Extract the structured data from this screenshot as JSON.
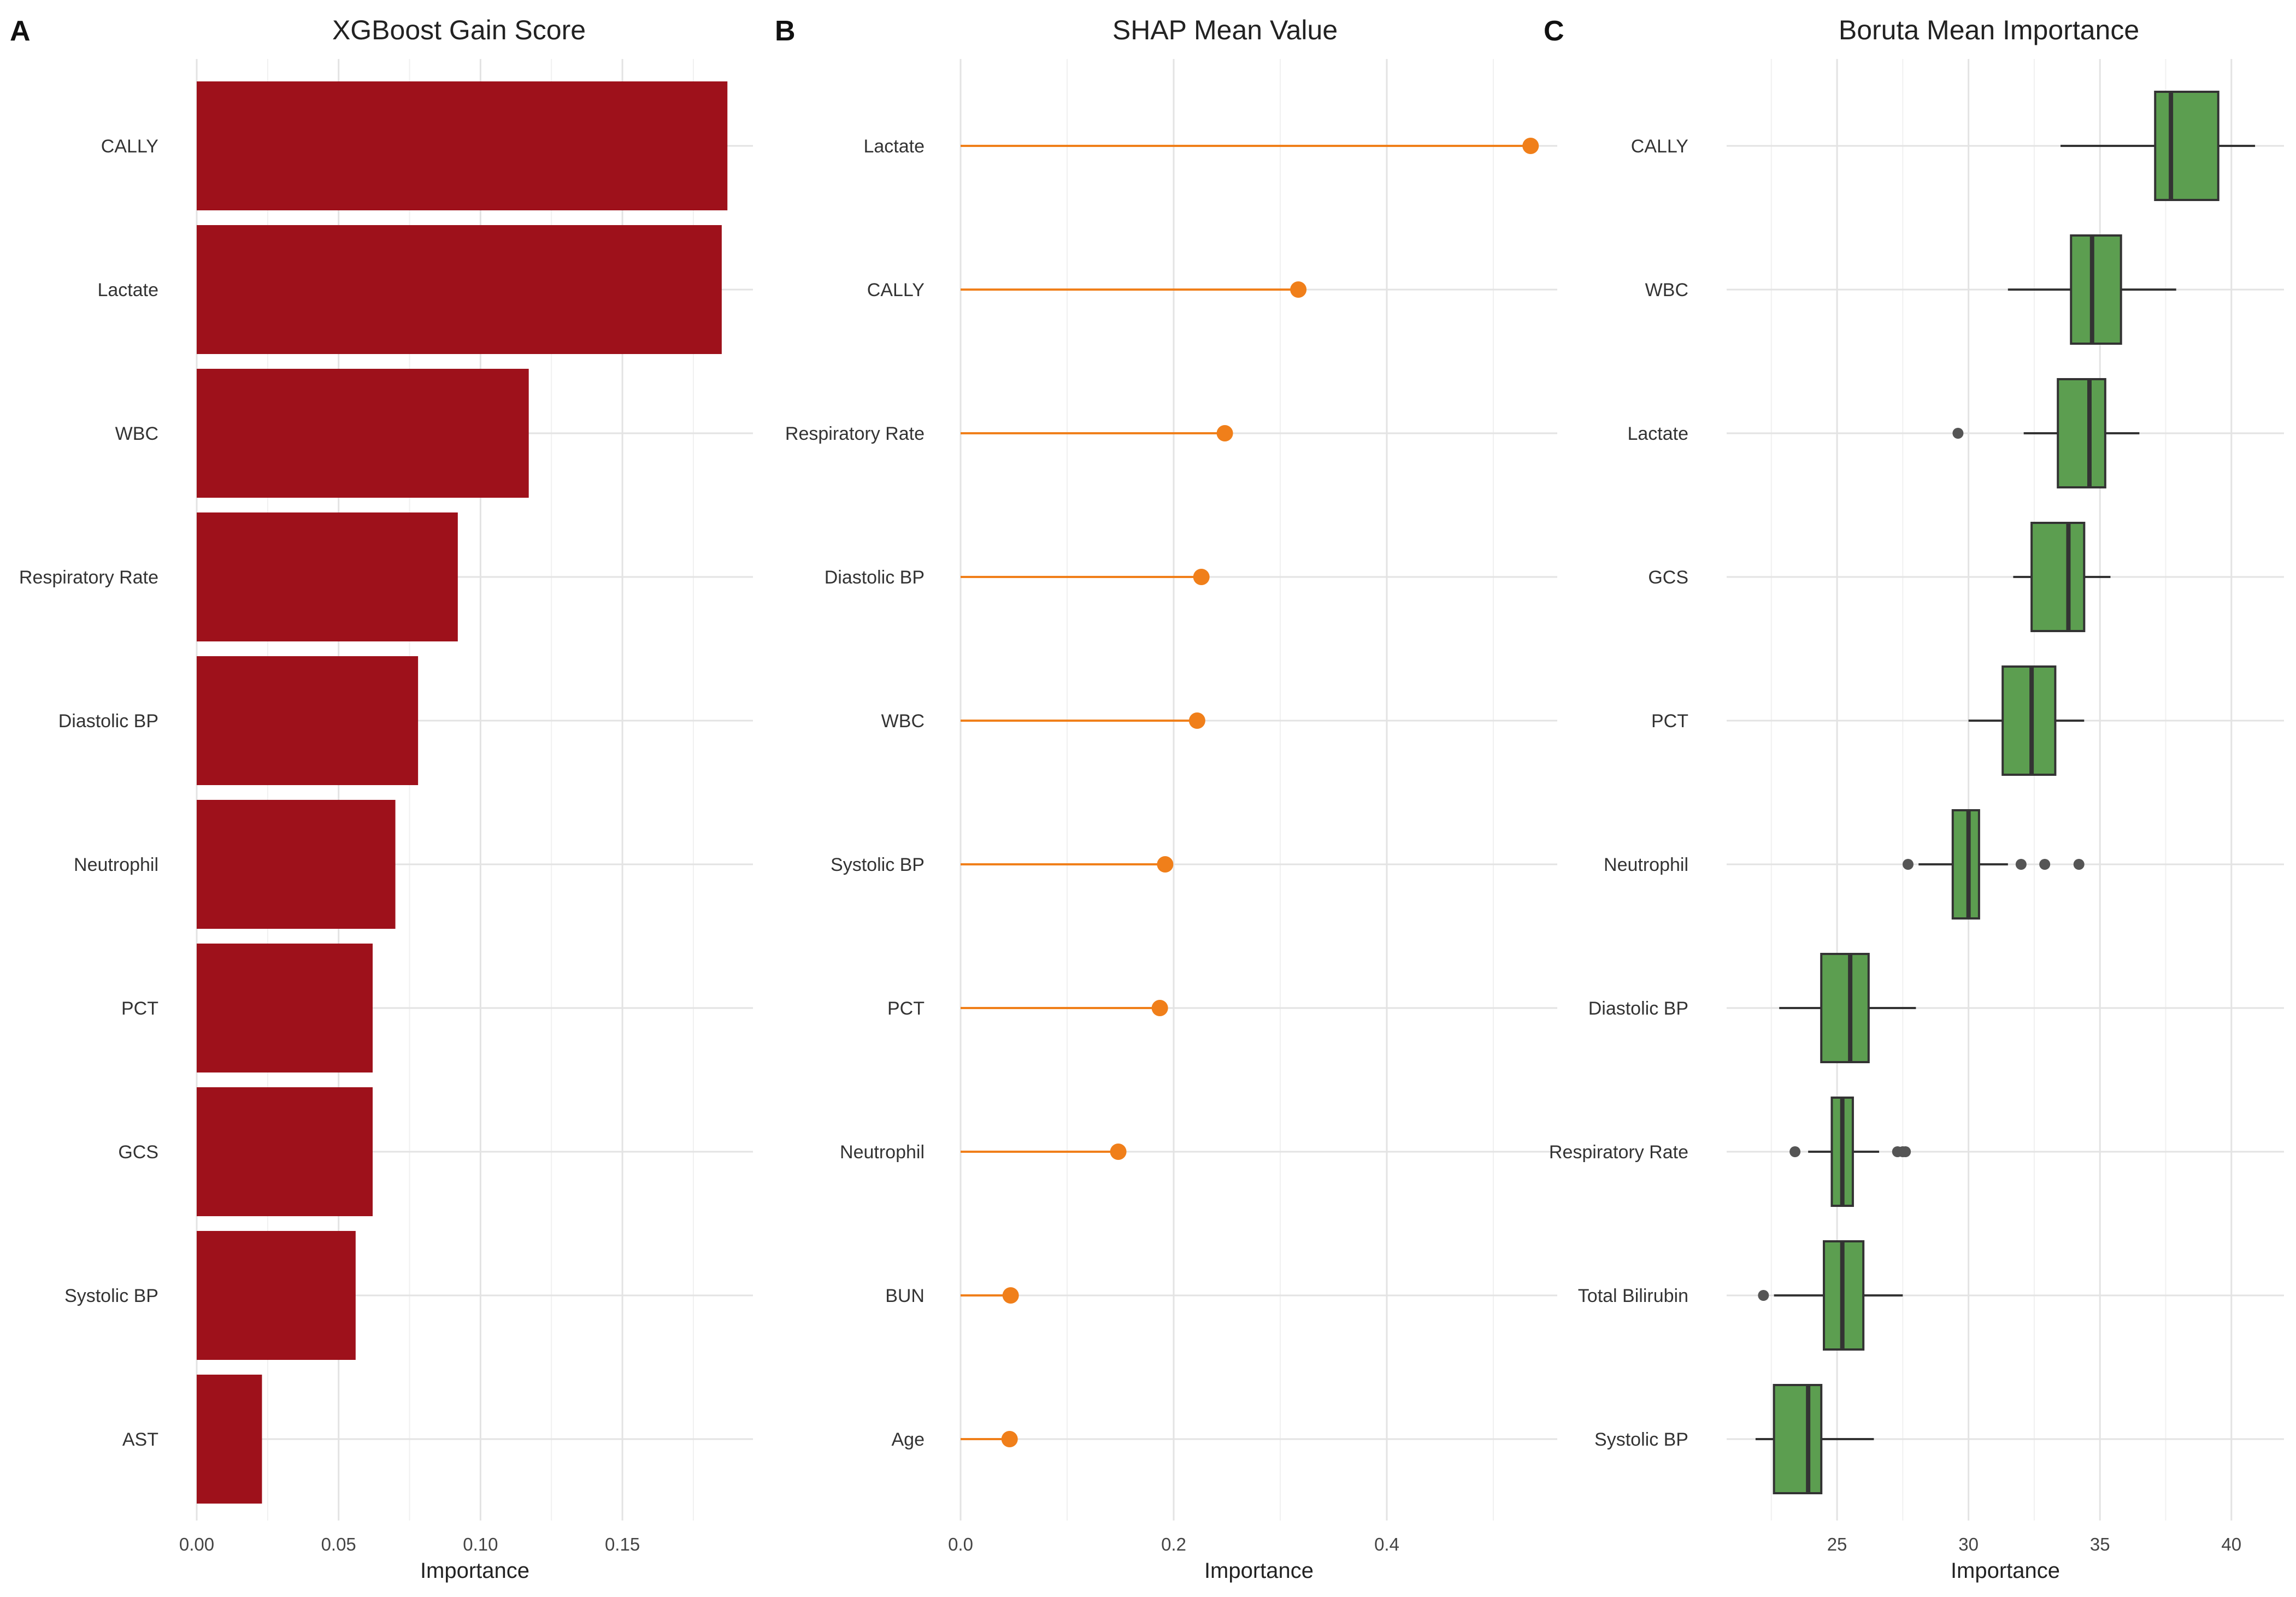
{
  "chart_data": [
    {
      "panel": "A",
      "type": "bar",
      "orientation": "horizontal",
      "title": "XGBoost Gain Score",
      "xlabel": "Importance",
      "ylabel": "",
      "xlim": [
        0,
        0.196
      ],
      "xticks": [
        0.0,
        0.05,
        0.1,
        0.15
      ],
      "xtick_labels": [
        "0.00",
        "0.05",
        "0.10",
        "0.15"
      ],
      "categories": [
        "CALLY",
        "Lactate",
        "WBC",
        "Respiratory Rate",
        "Diastolic BP",
        "Neutrophil",
        "PCT",
        "GCS",
        "Systolic BP",
        "AST"
      ],
      "values": [
        0.187,
        0.185,
        0.117,
        0.092,
        0.078,
        0.07,
        0.062,
        0.062,
        0.056,
        0.023
      ],
      "color": "#9e111b",
      "grid": true
    },
    {
      "panel": "B",
      "type": "lollipop",
      "orientation": "horizontal",
      "title": "SHAP Mean Value",
      "xlabel": "Importance",
      "ylabel": "",
      "xlim": [
        0,
        0.56
      ],
      "xticks": [
        0.0,
        0.2,
        0.4
      ],
      "xtick_labels": [
        "0.0",
        "0.2",
        "0.4"
      ],
      "categories": [
        "Lactate",
        "CALLY",
        "Respiratory Rate",
        "Diastolic BP",
        "WBC",
        "Systolic BP",
        "PCT",
        "Neutrophil",
        "BUN",
        "Age"
      ],
      "values": [
        0.535,
        0.317,
        0.248,
        0.226,
        0.222,
        0.192,
        0.187,
        0.148,
        0.047,
        0.046
      ],
      "color": "#f07f1a",
      "grid": true
    },
    {
      "panel": "C",
      "type": "boxplot",
      "orientation": "horizontal",
      "title": "Boruta Mean Importance",
      "xlabel": "Importance",
      "ylabel": "",
      "xlim": [
        20.8,
        42.0
      ],
      "xticks": [
        25,
        30,
        35,
        40
      ],
      "xtick_labels": [
        "25",
        "30",
        "35",
        "40"
      ],
      "categories": [
        "CALLY",
        "WBC",
        "Lactate",
        "GCS",
        "PCT",
        "Neutrophil",
        "Diastolic BP",
        "Respiratory Rate",
        "Total Bilirubin",
        "Systolic BP"
      ],
      "boxes": [
        {
          "min": 33.5,
          "q1": 37.1,
          "median": 37.7,
          "q3": 39.5,
          "max": 40.9,
          "outliers": []
        },
        {
          "min": 31.5,
          "q1": 33.9,
          "median": 34.7,
          "q3": 35.8,
          "max": 37.9,
          "outliers": []
        },
        {
          "min": 32.1,
          "q1": 33.4,
          "median": 34.6,
          "q3": 35.2,
          "max": 36.5,
          "outliers": [
            29.6
          ]
        },
        {
          "min": 31.7,
          "q1": 32.4,
          "median": 33.8,
          "q3": 34.4,
          "max": 35.4,
          "outliers": []
        },
        {
          "min": 30.0,
          "q1": 31.3,
          "median": 32.4,
          "q3": 33.3,
          "max": 34.4,
          "outliers": []
        },
        {
          "min": 28.1,
          "q1": 29.4,
          "median": 30.0,
          "q3": 30.4,
          "max": 31.5,
          "outliers": [
            27.7,
            32.0,
            32.9,
            34.2
          ]
        },
        {
          "min": 22.8,
          "q1": 24.4,
          "median": 25.5,
          "q3": 26.2,
          "max": 28.0,
          "outliers": []
        },
        {
          "min": 23.9,
          "q1": 24.8,
          "median": 25.2,
          "q3": 25.6,
          "max": 26.6,
          "outliers": [
            23.4,
            27.3,
            27.5,
            27.6
          ]
        },
        {
          "min": 22.6,
          "q1": 24.5,
          "median": 25.2,
          "q3": 26.0,
          "max": 27.5,
          "outliers": [
            22.2
          ]
        },
        {
          "min": 21.9,
          "q1": 22.6,
          "median": 23.9,
          "q3": 24.4,
          "max": 26.4,
          "outliers": []
        }
      ],
      "color": "#5c9e50",
      "grid": true
    }
  ]
}
